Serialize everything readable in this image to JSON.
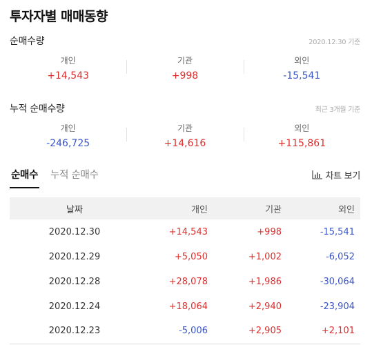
{
  "page_title": "투자자별 매매동향",
  "net": {
    "title": "순매수량",
    "note": "2020.12.30 기준",
    "items": [
      {
        "label": "개인",
        "value": "+14,543"
      },
      {
        "label": "기관",
        "value": "+998"
      },
      {
        "label": "외인",
        "value": "-15,541"
      }
    ]
  },
  "cumulative": {
    "title": "누적 순매수량",
    "note": "최근 3개월 기준",
    "items": [
      {
        "label": "개인",
        "value": "-246,725"
      },
      {
        "label": "기관",
        "value": "+14,616"
      },
      {
        "label": "외인",
        "value": "+115,861"
      }
    ]
  },
  "tabs": [
    "순매수",
    "누적 순매수"
  ],
  "chart_button": {
    "label": "차트 보기",
    "icon": "bar-chart-icon"
  },
  "table": {
    "headers": [
      "날짜",
      "개인",
      "기관",
      "외인"
    ],
    "rows": [
      [
        "2020.12.30",
        "+14,543",
        "+998",
        "-15,541"
      ],
      [
        "2020.12.29",
        "+5,050",
        "+1,002",
        "-6,052"
      ],
      [
        "2020.12.28",
        "+28,078",
        "+1,986",
        "-30,064"
      ],
      [
        "2020.12.24",
        "+18,064",
        "+2,940",
        "-23,904"
      ],
      [
        "2020.12.23",
        "-5,006",
        "+2,905",
        "+2,101"
      ]
    ]
  },
  "colors": {
    "positive": "#dd2e2e",
    "negative": "#3a55c6"
  }
}
